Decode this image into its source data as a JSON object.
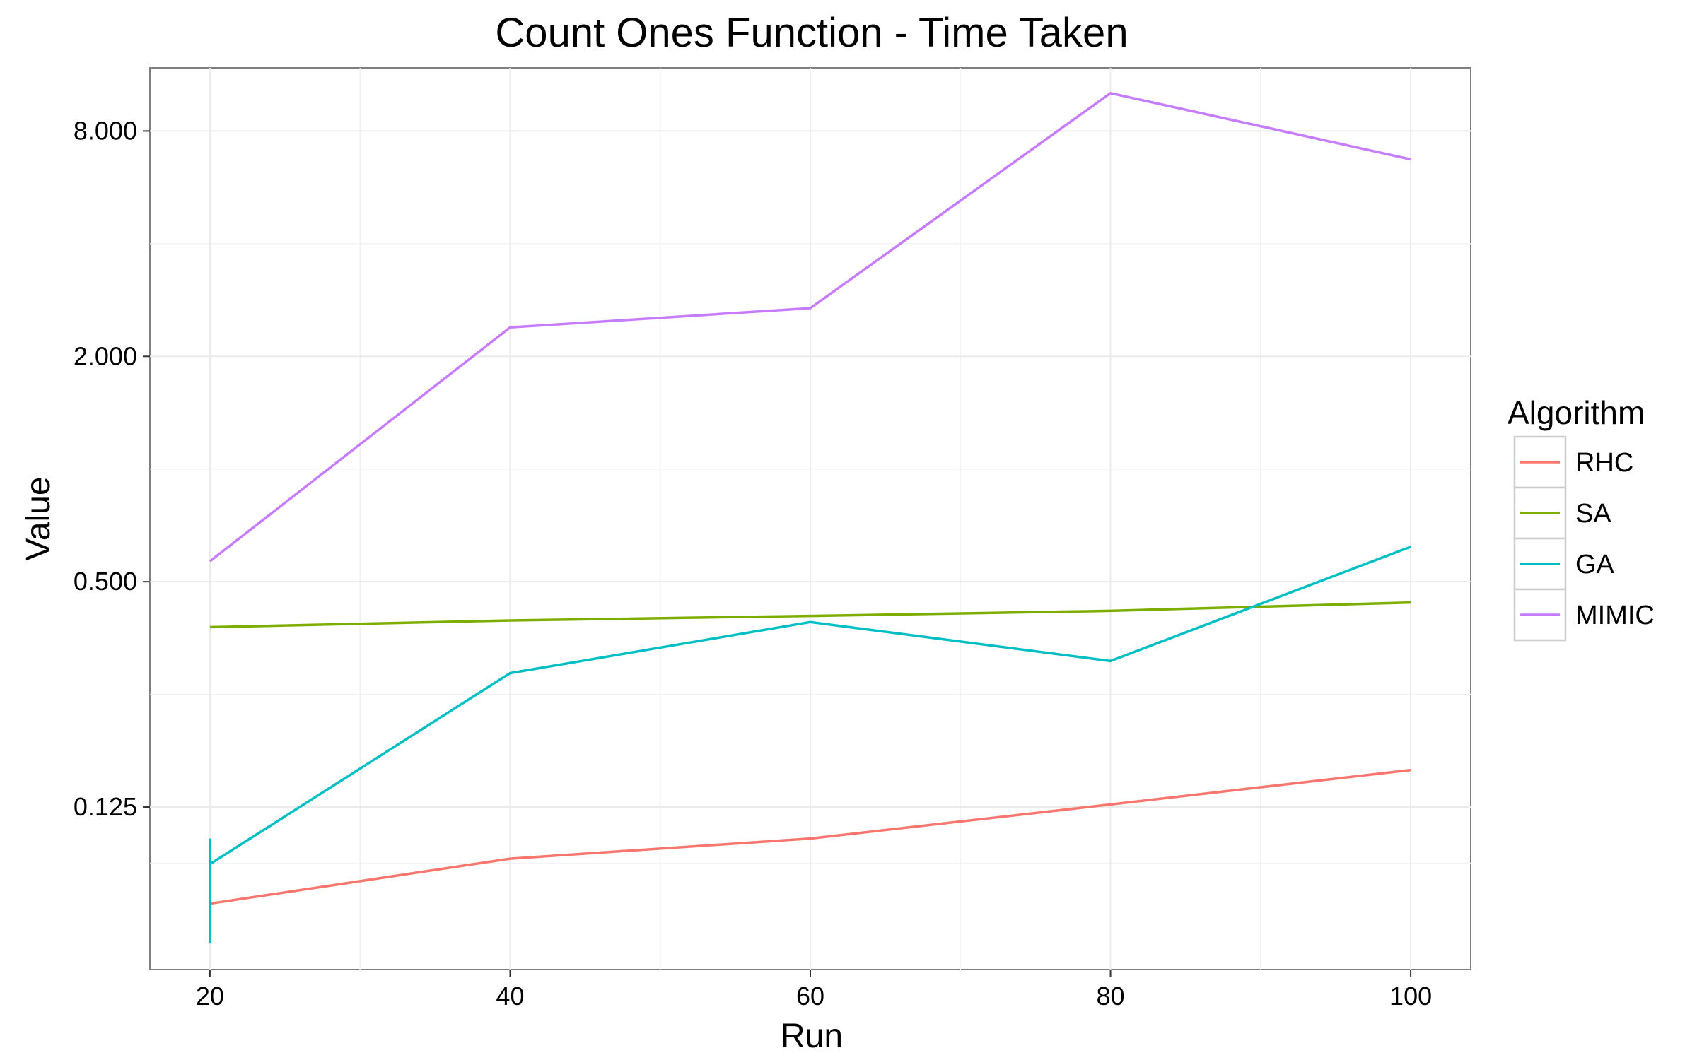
{
  "chart_data": {
    "type": "line",
    "title": "Count Ones Function - Time Taken",
    "xlabel": "Run",
    "ylabel": "Value",
    "x": [
      20,
      40,
      60,
      80,
      100
    ],
    "x_ticks": [
      "20",
      "40",
      "60",
      "80",
      "100"
    ],
    "xlim": [
      16,
      104
    ],
    "y_scale": "log2",
    "y_ticks": [
      {
        "value": 0.125,
        "label": "0.125"
      },
      {
        "value": 0.5,
        "label": "0.500"
      },
      {
        "value": 2,
        "label": "2.000"
      },
      {
        "value": 8,
        "label": "8.000"
      }
    ],
    "ylim": [
      0.046,
      11.8
    ],
    "grid": true,
    "legend": {
      "title": "Algorithm",
      "position": "right"
    },
    "series": [
      {
        "name": "RHC",
        "color": "#F8766D",
        "values": [
          0.069,
          0.091,
          0.103,
          0.127,
          0.157
        ]
      },
      {
        "name": "SA",
        "color": "#7CAE00",
        "values": [
          0.378,
          0.394,
          0.405,
          0.418,
          0.44
        ]
      },
      {
        "name": "GA",
        "color": "#00BFC4",
        "values": [
          0.088,
          0.285,
          0.39,
          0.307,
          0.62
        ],
        "error_bar": {
          "x": 20,
          "low": 0.054,
          "high": 0.103
        }
      },
      {
        "name": "MIMIC",
        "color": "#C77CFF",
        "values": [
          0.567,
          2.39,
          2.69,
          10.1,
          6.72
        ]
      }
    ]
  }
}
